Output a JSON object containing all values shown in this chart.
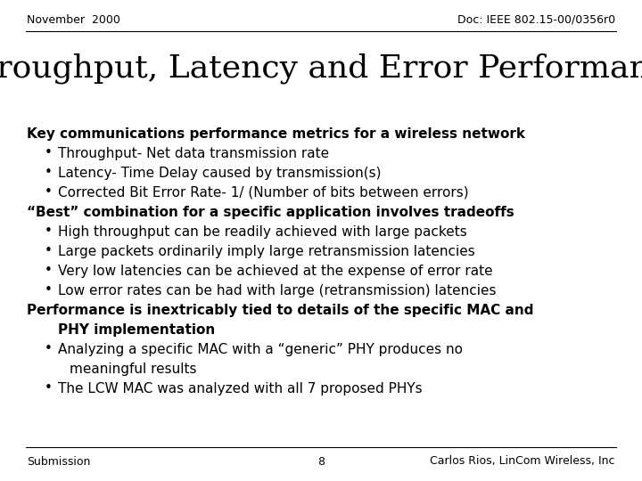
{
  "bg_color": "#ffffff",
  "header_left": "November  2000",
  "header_right": "Doc: IEEE 802.15-00/0356r0",
  "title": "Throughput, Latency and Error Performance",
  "footer_left": "Submission",
  "footer_center": "8",
  "footer_right": "Carlos Rios, LinCom Wireless, Inc",
  "body_lines": [
    {
      "text": "Key communications performance metrics for a wireless network",
      "bold": true,
      "indent": 0,
      "bullet": false
    },
    {
      "text": "Throughput- Net data transmission rate",
      "bold": false,
      "indent": 1,
      "bullet": true
    },
    {
      "text": "Latency- Time Delay caused by transmission(s)",
      "bold": false,
      "indent": 1,
      "bullet": true
    },
    {
      "text": "Corrected Bit Error Rate- 1/ (Number of bits between errors)",
      "bold": false,
      "indent": 1,
      "bullet": true
    },
    {
      "text": "“Best” combination for a specific application involves tradeoffs",
      "bold": true,
      "indent": 0,
      "bullet": false
    },
    {
      "text": "High throughput can be readily achieved with large packets",
      "bold": false,
      "indent": 1,
      "bullet": true
    },
    {
      "text": "Large packets ordinarily imply large retransmission latencies",
      "bold": false,
      "indent": 1,
      "bullet": true
    },
    {
      "text": "Very low latencies can be achieved at the expense of error rate",
      "bold": false,
      "indent": 1,
      "bullet": true
    },
    {
      "text": "Low error rates can be had with large (retransmission) latencies",
      "bold": false,
      "indent": 1,
      "bullet": true
    },
    {
      "text": "Performance is inextricably tied to details of the specific MAC and",
      "bold": true,
      "indent": 0,
      "bullet": false
    },
    {
      "text": "PHY implementation",
      "bold": true,
      "indent": 1,
      "bullet": false
    },
    {
      "text": "Analyzing a specific MAC with a “generic” PHY produces no",
      "bold": false,
      "indent": 1,
      "bullet": true
    },
    {
      "text": "meaningful results",
      "bold": false,
      "indent": 2,
      "bullet": false
    },
    {
      "text": "The LCW MAC was analyzed with all 7 proposed PHYs",
      "bold": false,
      "indent": 1,
      "bullet": true
    }
  ],
  "header_fontsize": 9,
  "title_fontsize": 26,
  "body_fontsize": 11,
  "footer_fontsize": 9
}
